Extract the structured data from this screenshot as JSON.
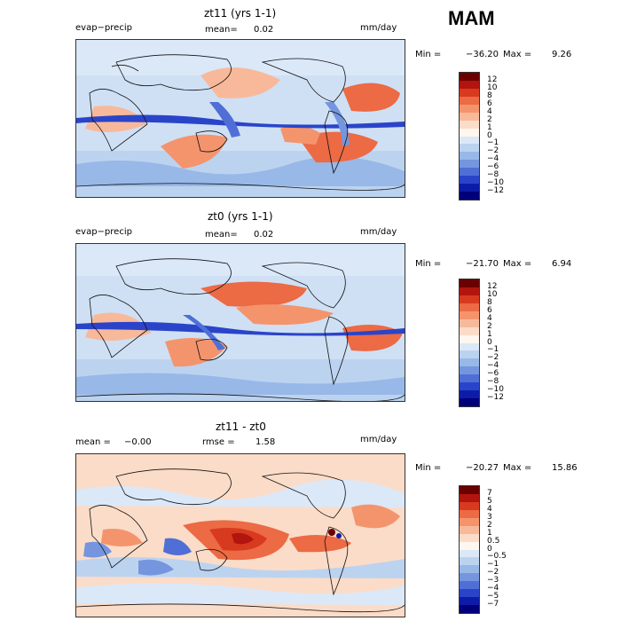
{
  "season": "MAM",
  "panels": [
    {
      "title": "zt11 (yrs 1-1)",
      "left_label": "evap−precip",
      "mean_label": "mean=",
      "mean_value": "0.02",
      "rmse_label": "",
      "rmse_value": "",
      "units": "mm/day",
      "min_label": "Min =",
      "min_value": "−36.20",
      "max_label": "Max =",
      "max_value": "9.26",
      "colorbar_labels": [
        "12",
        "10",
        "8",
        "6",
        "4",
        "2",
        "1",
        "0",
        "−1",
        "−2",
        "−4",
        "−6",
        "−8",
        "−10",
        "−12"
      ]
    },
    {
      "title": "zt0 (yrs 1-1)",
      "left_label": "evap−precip",
      "mean_label": "mean=",
      "mean_value": "0.02",
      "rmse_label": "",
      "rmse_value": "",
      "units": "mm/day",
      "min_label": "Min =",
      "min_value": "−21.70",
      "max_label": "Max =",
      "max_value": "6.94",
      "colorbar_labels": [
        "12",
        "10",
        "8",
        "6",
        "4",
        "2",
        "1",
        "0",
        "−1",
        "−2",
        "−4",
        "−6",
        "−8",
        "−10",
        "−12"
      ]
    },
    {
      "title": "zt11 - zt0",
      "left_label": "mean =",
      "mean_label": "",
      "mean_value": "−0.00",
      "rmse_label": "rmse =",
      "rmse_value": "1.58",
      "units": "mm/day",
      "min_label": "Min =",
      "min_value": "−20.27",
      "max_label": "Max =",
      "max_value": "15.86",
      "colorbar_labels": [
        "7",
        "5",
        "4",
        "3",
        "2",
        "1",
        "0.5",
        "0",
        "−0.5",
        "−1",
        "−2",
        "−3",
        "−4",
        "−5",
        "−7"
      ]
    }
  ],
  "colors": {
    "scale": [
      "#6b0000",
      "#b2140e",
      "#d83a1f",
      "#ec6a44",
      "#f4946d",
      "#f8b99b",
      "#fbdcc8",
      "#fff6ee",
      "#dbe8f8",
      "#bcd3f0",
      "#98b8e8",
      "#7596de",
      "#4f6fd6",
      "#2a44c9",
      "#0c1ca8",
      "#00007a"
    ],
    "ocean_base": "#cfe0f4",
    "coast": "#111111"
  }
}
